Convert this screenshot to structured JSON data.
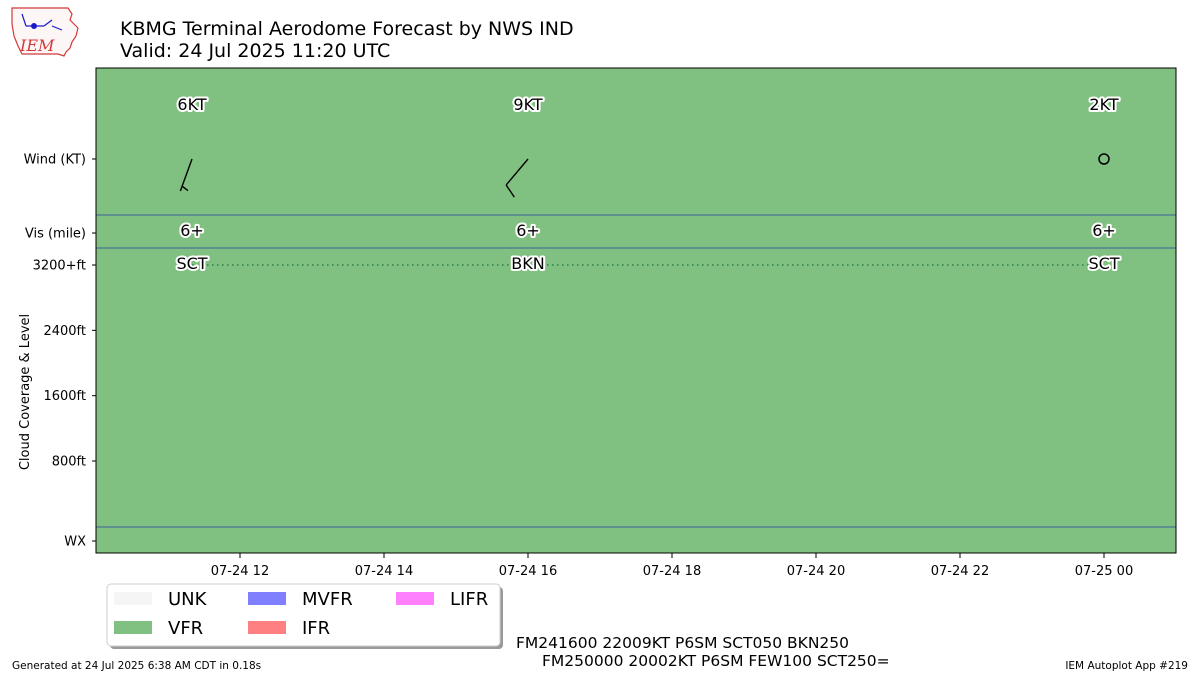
{
  "header": {
    "title": "KBMG Terminal Aerodome Forecast by NWS IND",
    "subtitle": "Valid: 24 Jul 2025 11:20 UTC"
  },
  "logo": {
    "text": "IEM"
  },
  "footer": {
    "generated": "Generated at 24 Jul 2025 6:38 AM CDT in 0.18s",
    "app": "IEM Autoplot App #219"
  },
  "taf_text": {
    "line1": "FM241600 22009KT P6SM SCT050 BKN250",
    "line2": "FM250000 20002KT P6SM FEW100 SCT250="
  },
  "colors": {
    "UNK": "#f5f5f5",
    "VFR": "#80c080",
    "MVFR": "#8080ff",
    "IFR": "#ff8080",
    "LIFR": "#ff80ff",
    "divider": "#3b5fa0",
    "cloud_line": "#2e7d4a"
  },
  "chart_data": {
    "type": "timeline",
    "x_range": [
      "2025-07-24 10:00",
      "2025-07-25 01:00"
    ],
    "x_ticks": [
      {
        "t": "2025-07-24 12:00",
        "label": "07-24 12"
      },
      {
        "t": "2025-07-24 14:00",
        "label": "07-24 14"
      },
      {
        "t": "2025-07-24 16:00",
        "label": "07-24 16"
      },
      {
        "t": "2025-07-24 18:00",
        "label": "07-24 18"
      },
      {
        "t": "2025-07-24 20:00",
        "label": "07-24 20"
      },
      {
        "t": "2025-07-24 22:00",
        "label": "07-24 22"
      },
      {
        "t": "2025-07-25 00:00",
        "label": "07-25 00"
      }
    ],
    "y_labels": {
      "wind": "Wind (KT)",
      "vis": "Vis (mile)",
      "cloud_axis_title": "Cloud Coverage & Level",
      "wx": "WX"
    },
    "cloud_ticks": [
      {
        "ft": 3200,
        "label": "3200+ft"
      },
      {
        "ft": 2400,
        "label": "2400ft"
      },
      {
        "ft": 1600,
        "label": "1600ft"
      },
      {
        "ft": 800,
        "label": "800ft"
      }
    ],
    "flight_category": "VFR",
    "forecasts": [
      {
        "time": "2025-07-24 11:20",
        "wind_dir": 200,
        "wind_kt": 6,
        "wind_label": "6KT",
        "vis_label": "6+",
        "cloud_label": "SCT"
      },
      {
        "time": "2025-07-24 16:00",
        "wind_dir": 220,
        "wind_kt": 9,
        "wind_label": "9KT",
        "vis_label": "6+",
        "cloud_label": "BKN"
      },
      {
        "time": "2025-07-25 00:00",
        "wind_dir": 200,
        "wind_kt": 2,
        "wind_label": "2KT",
        "vis_label": "6+",
        "cloud_label": "SCT"
      }
    ],
    "legend": [
      {
        "name": "UNK"
      },
      {
        "name": "VFR"
      },
      {
        "name": "MVFR"
      },
      {
        "name": "IFR"
      },
      {
        "name": "LIFR"
      }
    ]
  }
}
